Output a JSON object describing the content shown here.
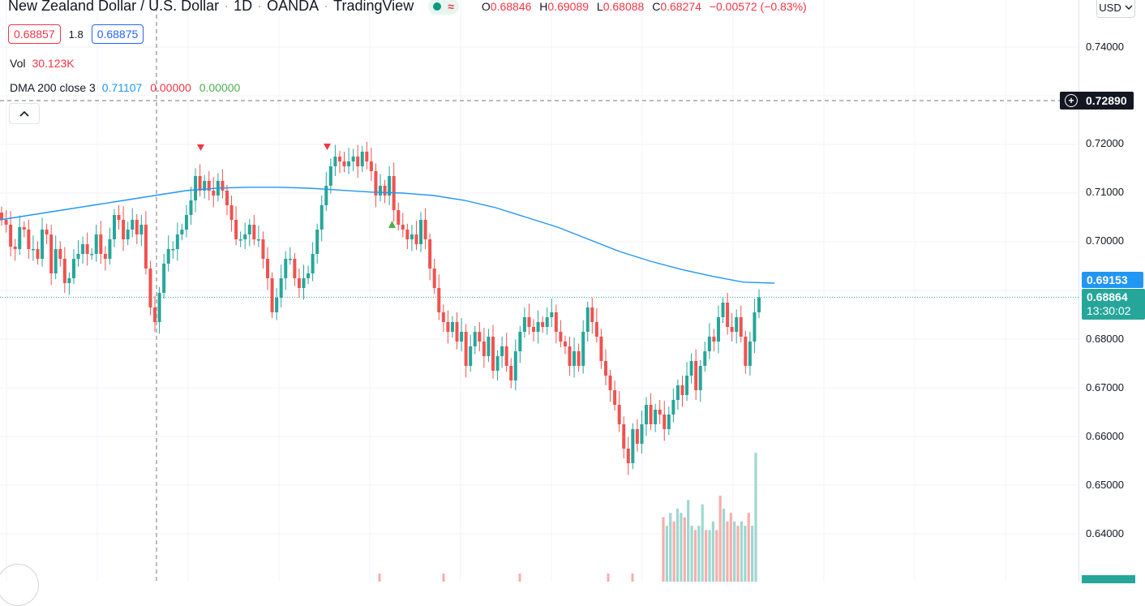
{
  "header": {
    "symbol": "New Zealand Dollar / U.S. Dollar",
    "interval": "1D",
    "broker": "OANDA",
    "platform": "TradingView",
    "sep": "·",
    "wave_glyph": "≈",
    "ohlc": {
      "o_label": "O",
      "o": "0.68846",
      "h_label": "H",
      "h": "0.69089",
      "l_label": "L",
      "l": "0.68088",
      "c_label": "C",
      "c": "0.68274",
      "change": "−0.00572 (−0.83%)"
    }
  },
  "quote": {
    "sell": "0.68857",
    "spread": "1.8",
    "buy": "0.68875"
  },
  "volume": {
    "label": "Vol",
    "value": "30.123K"
  },
  "indicator": {
    "name": "DMA 200 close 3",
    "v1": "0.71107",
    "v2": "0.00000",
    "v3": "0.00000"
  },
  "currency": "USD",
  "price_scale": {
    "ticks": [
      "0.74000",
      "0.72000",
      "0.71000",
      "0.70000",
      "0.68000",
      "0.67000",
      "0.66000",
      "0.65000",
      "0.64000"
    ],
    "crosshair_price": "0.72890",
    "dma_price": "0.69153",
    "last_price": "0.68864",
    "countdown": "13:30:02",
    "plus_glyph": "+"
  },
  "colors": {
    "up": "#26a69a",
    "down": "#ef5350",
    "ma": "#2196f3",
    "up_vol": "#9fd7d0",
    "down_vol": "#f7aeab"
  },
  "chart_data": {
    "type": "candlestick",
    "instrument": "NZD/USD",
    "ylim": [
      0.633,
      0.752
    ],
    "grid": true,
    "candles_close": [
      0.7045,
      0.7035,
      0.699,
      0.6985,
      0.703,
      0.7025,
      0.6985,
      0.6985,
      0.6965,
      0.7025,
      0.7015,
      0.6935,
      0.6985,
      0.6965,
      0.6915,
      0.6925,
      0.6965,
      0.6975,
      0.6995,
      0.6975,
      0.6975,
      0.7015,
      0.6975,
      0.6965,
      0.7005,
      0.7055,
      0.7045,
      0.7005,
      0.7025,
      0.7045,
      0.7015,
      0.7035,
      0.6945,
      0.6865,
      0.6835,
      0.6895,
      0.6955,
      0.6985,
      0.6985,
      0.7015,
      0.7025,
      0.7055,
      0.7085,
      0.7135,
      0.7105,
      0.7125,
      0.7105,
      0.7095,
      0.7125,
      0.7105,
      0.7075,
      0.7045,
      0.7005,
      0.7005,
      0.7015,
      0.7035,
      0.7005,
      0.7005,
      0.6965,
      0.6925,
      0.6855,
      0.6885,
      0.6925,
      0.6965,
      0.6965,
      0.6925,
      0.6905,
      0.6925,
      0.6935,
      0.6975,
      0.7025,
      0.7075,
      0.7115,
      0.7155,
      0.7175,
      0.7165,
      0.7155,
      0.7165,
      0.7175,
      0.7155,
      0.7185,
      0.7165,
      0.7145,
      0.7095,
      0.7115,
      0.7095,
      0.7135,
      0.7065,
      0.7035,
      0.7025,
      0.7005,
      0.7015,
      0.6995,
      0.7045,
      0.7005,
      0.6945,
      0.6905,
      0.6855,
      0.6835,
      0.6815,
      0.6835,
      0.6795,
      0.6815,
      0.6745,
      0.6785,
      0.6815,
      0.6795,
      0.6765,
      0.6805,
      0.6735,
      0.6765,
      0.6785,
      0.6745,
      0.6715,
      0.6775,
      0.6815,
      0.6845,
      0.6825,
      0.6815,
      0.6835,
      0.6825,
      0.6845,
      0.6855,
      0.6815,
      0.6795,
      0.6785,
      0.6745,
      0.6775,
      0.6745,
      0.6815,
      0.6865,
      0.6835,
      0.6805,
      0.6755,
      0.6725,
      0.6695,
      0.6665,
      0.6625,
      0.6575,
      0.6545,
      0.6615,
      0.6585,
      0.6625,
      0.6665,
      0.6625,
      0.6655,
      0.6645,
      0.6615,
      0.6645,
      0.6675,
      0.6705,
      0.6685,
      0.6725,
      0.6755,
      0.6695,
      0.6745,
      0.6775,
      0.6805,
      0.6795,
      0.6845,
      0.6875,
      0.6825,
      0.6815,
      0.6845,
      0.6805,
      0.6745,
      0.6795,
      0.6855,
      0.6886
    ],
    "dma_200": [
      0.7045,
      0.7055,
      0.7065,
      0.7075,
      0.7085,
      0.7095,
      0.7105,
      0.711,
      0.7112,
      0.7112,
      0.711,
      0.7106,
      0.7102,
      0.71,
      0.7095,
      0.7085,
      0.707,
      0.705,
      0.703,
      0.7005,
      0.698,
      0.696,
      0.6943,
      0.6929,
      0.6917,
      0.6915
    ],
    "volume_visible_k": [
      15,
      13,
      16,
      14,
      17,
      16,
      15,
      19,
      13,
      12,
      13,
      18,
      12,
      12,
      14,
      12,
      20,
      17,
      14,
      16,
      14,
      13,
      14,
      13,
      16,
      13,
      30
    ]
  }
}
